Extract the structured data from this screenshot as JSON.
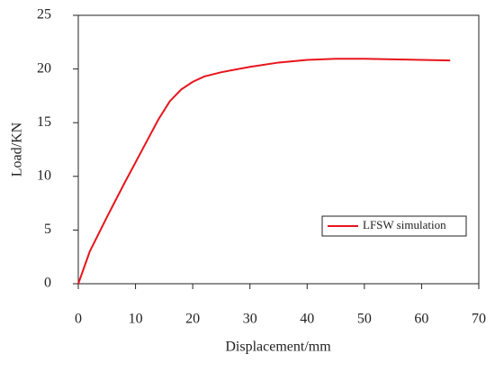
{
  "chart_data": {
    "type": "line",
    "x_label": "Displacement/mm",
    "y_label": "Load/KN",
    "x": [
      0,
      2,
      5,
      8,
      10,
      12,
      14,
      16,
      18,
      20,
      22,
      25,
      30,
      35,
      40,
      45,
      50,
      55,
      60,
      65
    ],
    "series": [
      {
        "name": "LFSW simulation",
        "color": "#e8141c",
        "values": [
          0,
          3,
          6.2,
          9.3,
          11.3,
          13.3,
          15.3,
          17,
          18.1,
          18.8,
          19.3,
          19.7,
          20.2,
          20.6,
          20.85,
          20.95,
          20.95,
          20.9,
          20.85,
          20.8
        ]
      }
    ],
    "xlim": [
      0,
      70
    ],
    "xticks": [
      0,
      10,
      20,
      30,
      40,
      50,
      60,
      70
    ],
    "ylim": [
      0,
      25
    ],
    "yticks": [
      0,
      5,
      10,
      15,
      20,
      25
    ],
    "grid": false,
    "legend": "center right"
  }
}
